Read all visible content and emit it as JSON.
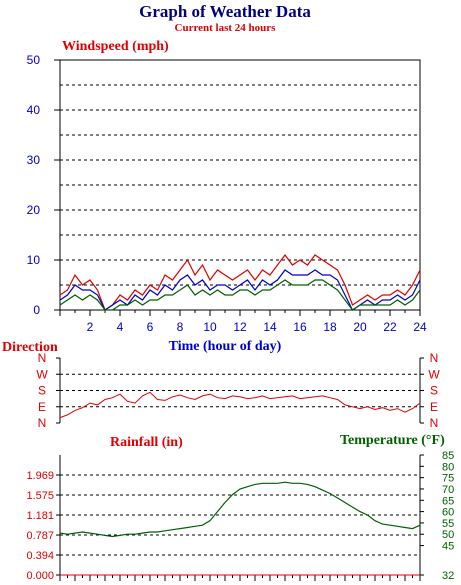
{
  "title": "Graph of Weather Data",
  "subtitle": "Current last 24 hours",
  "colors": {
    "title": "#000080",
    "red": "#e00000",
    "blue": "#0000cc",
    "green": "#006000",
    "grid": "#000000"
  },
  "chart_data": [
    {
      "type": "line",
      "title": "Windspeed (mph)",
      "xlabel": "Time (hour of day)",
      "ylabel": "",
      "xlim": [
        0,
        24
      ],
      "ylim": [
        0,
        50
      ],
      "x_tick_labels": [
        "2",
        "4",
        "6",
        "8",
        "10",
        "12",
        "14",
        "16",
        "18",
        "20",
        "22",
        "24"
      ],
      "y_tick_labels": [
        "0",
        "10",
        "20",
        "30",
        "40",
        "50"
      ],
      "grid": true,
      "x": [
        0,
        0.5,
        1,
        1.5,
        2,
        2.5,
        3,
        3.5,
        4,
        4.5,
        5,
        5.5,
        6,
        6.5,
        7,
        7.5,
        8,
        8.5,
        9,
        9.5,
        10,
        10.5,
        11,
        11.5,
        12,
        12.5,
        13,
        13.5,
        14,
        14.5,
        15,
        15.5,
        16,
        16.5,
        17,
        17.5,
        18,
        18.5,
        19,
        19.5,
        20,
        20.5,
        21,
        21.5,
        22,
        22.5,
        23,
        23.5,
        24
      ],
      "series": [
        {
          "color": "red",
          "values": [
            3,
            4,
            7,
            5,
            6,
            4,
            0,
            1,
            3,
            2,
            4,
            3,
            5,
            4,
            7,
            6,
            8,
            10,
            7,
            9,
            6,
            8,
            7,
            6,
            7,
            8,
            6,
            8,
            7,
            9,
            11,
            9,
            10,
            9,
            11,
            10,
            9,
            8,
            5,
            1,
            2,
            3,
            2,
            3,
            3,
            4,
            3,
            5,
            8
          ]
        },
        {
          "color": "blue",
          "values": [
            2,
            3,
            5,
            4,
            4,
            3,
            0,
            1,
            2,
            1,
            3,
            2,
            4,
            3,
            5,
            4,
            6,
            7,
            5,
            6,
            4,
            5,
            5,
            4,
            5,
            6,
            4,
            6,
            5,
            6,
            8,
            7,
            7,
            7,
            8,
            7,
            7,
            6,
            3,
            0,
            1,
            2,
            1,
            2,
            2,
            3,
            2,
            3,
            6
          ]
        },
        {
          "color": "green",
          "values": [
            1,
            2,
            3,
            2,
            3,
            2,
            0,
            0,
            1,
            1,
            2,
            1,
            2,
            2,
            3,
            3,
            4,
            5,
            3,
            4,
            3,
            4,
            3,
            3,
            4,
            4,
            3,
            4,
            4,
            5,
            6,
            5,
            5,
            5,
            6,
            6,
            5,
            4,
            2,
            0,
            1,
            1,
            1,
            1,
            1,
            2,
            1,
            2,
            4
          ]
        }
      ]
    },
    {
      "type": "line",
      "title": "Direction",
      "xlim": [
        0,
        24
      ],
      "y_tick_labels": [
        "N",
        "E",
        "S",
        "W",
        "N"
      ],
      "y_tick_labels_right": [
        "N",
        "E",
        "S",
        "W",
        "N"
      ],
      "y_tick_values": [
        0,
        90,
        180,
        270,
        360
      ],
      "ylim": [
        0,
        360
      ],
      "grid": true,
      "x": [
        0,
        0.5,
        1,
        1.5,
        2,
        2.5,
        3,
        3.5,
        4,
        4.5,
        5,
        5.5,
        6,
        6.5,
        7,
        7.5,
        8,
        8.5,
        9,
        9.5,
        10,
        10.5,
        11,
        11.5,
        12,
        12.5,
        13,
        13.5,
        14,
        14.5,
        15,
        15.5,
        16,
        16.5,
        17,
        17.5,
        18,
        18.5,
        19,
        19.5,
        20,
        20.5,
        21,
        21.5,
        22,
        22.5,
        23,
        23.5,
        24
      ],
      "series": [
        {
          "color": "red",
          "values": [
            30,
            45,
            70,
            85,
            110,
            100,
            130,
            140,
            160,
            120,
            110,
            150,
            170,
            130,
            125,
            145,
            155,
            140,
            130,
            150,
            160,
            140,
            135,
            150,
            145,
            135,
            140,
            150,
            135,
            140,
            145,
            150,
            135,
            140,
            145,
            150,
            140,
            130,
            100,
            90,
            80,
            90,
            75,
            85,
            70,
            80,
            60,
            80,
            110
          ]
        }
      ]
    },
    {
      "type": "line",
      "title": "Rainfall (in)",
      "xlim": [
        0,
        24
      ],
      "ylim": [
        0,
        2.363
      ],
      "y_tick_labels": [
        "0.000",
        "0.394",
        "0.787",
        "1.181",
        "1.575",
        "1.969"
      ],
      "grid": true,
      "series": [
        {
          "color": "red",
          "values": [
            0,
            0,
            0,
            0,
            0,
            0,
            0,
            0,
            0,
            0,
            0,
            0,
            0,
            0,
            0,
            0,
            0,
            0,
            0,
            0,
            0,
            0,
            0,
            0,
            0,
            0,
            0,
            0,
            0,
            0,
            0,
            0,
            0,
            0,
            0,
            0,
            0,
            0,
            0,
            0,
            0,
            0,
            0,
            0,
            0,
            0,
            0,
            0,
            0
          ]
        }
      ]
    },
    {
      "type": "line",
      "title": "Temperature (°F)",
      "xlim": [
        0,
        24
      ],
      "ylim": [
        32,
        85
      ],
      "y_tick_labels": [
        "32",
        "45",
        "50",
        "55",
        "60",
        "65",
        "70",
        "75",
        "80",
        "85"
      ],
      "y_tick_values": [
        32,
        45,
        50,
        55,
        60,
        65,
        70,
        75,
        80,
        85
      ],
      "x": [
        0,
        0.5,
        1,
        1.5,
        2,
        2.5,
        3,
        3.5,
        4,
        4.5,
        5,
        5.5,
        6,
        6.5,
        7,
        7.5,
        8,
        8.5,
        9,
        9.5,
        10,
        10.5,
        11,
        11.5,
        12,
        12.5,
        13,
        13.5,
        14,
        14.5,
        15,
        15.5,
        16,
        16.5,
        17,
        17.5,
        18,
        18.5,
        19,
        19.5,
        20,
        20.5,
        21,
        21.5,
        22,
        22.5,
        23,
        23.5,
        24
      ],
      "series": [
        {
          "color": "green",
          "values": [
            50.5,
            50.0,
            50.5,
            51.0,
            50.5,
            50.0,
            49.5,
            49.0,
            49.5,
            50.0,
            50.0,
            50.5,
            51.0,
            51.0,
            51.5,
            52.0,
            52.5,
            53.0,
            53.5,
            54.0,
            56.0,
            60.0,
            64.0,
            67.5,
            70.0,
            71.0,
            72.0,
            72.5,
            72.5,
            72.5,
            73.0,
            72.5,
            72.5,
            72.0,
            71.0,
            69.5,
            68.0,
            66.0,
            64.0,
            62.0,
            60.0,
            58.5,
            56.0,
            54.5,
            54.0,
            53.5,
            53.0,
            52.5,
            54.0
          ]
        }
      ]
    }
  ]
}
